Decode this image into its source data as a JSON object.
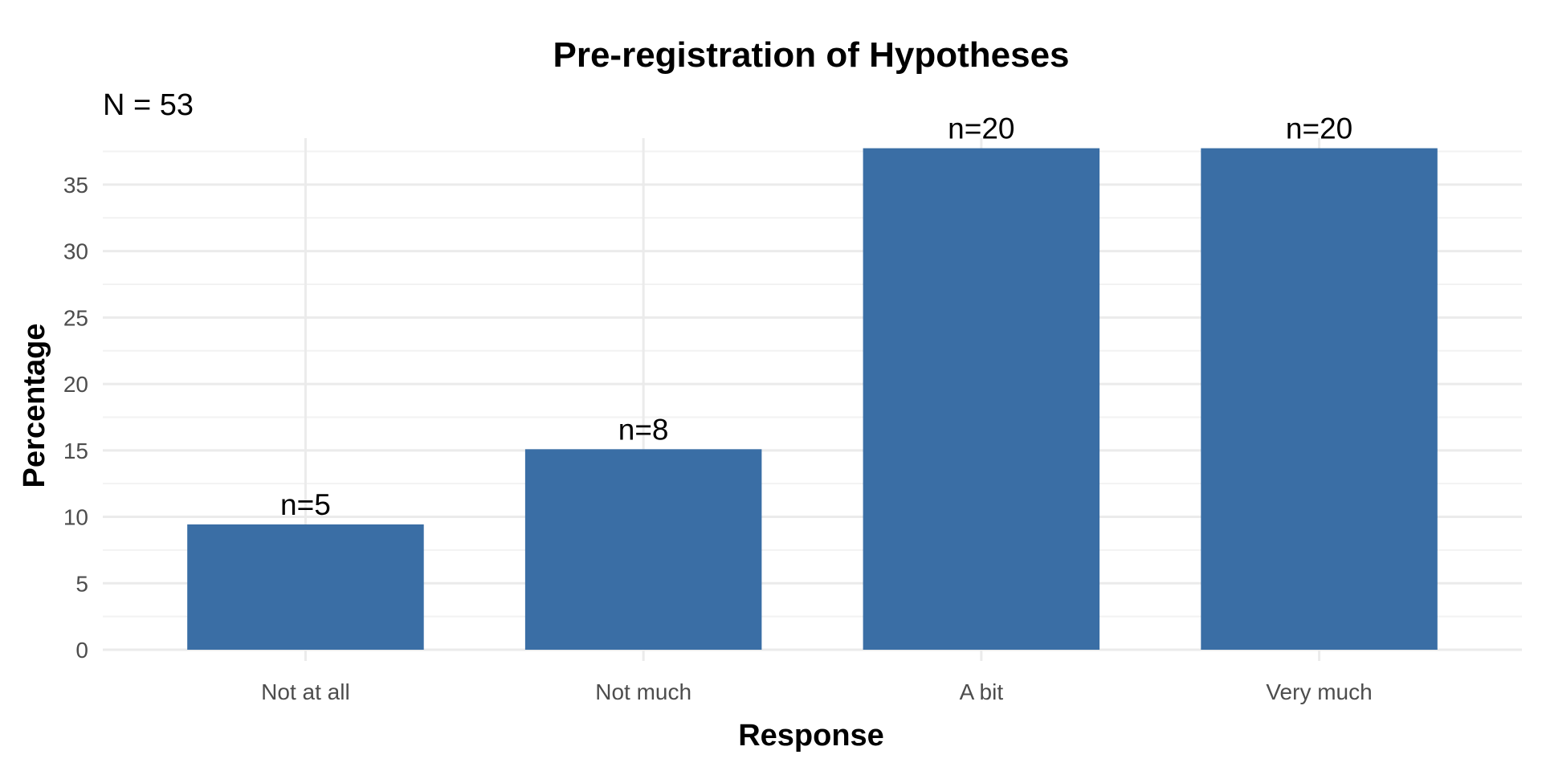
{
  "chart_data": {
    "type": "bar",
    "title": "Pre-registration of Hypotheses",
    "subtitle": "N = 53",
    "xlabel": "Response",
    "ylabel": "Percentage",
    "categories": [
      "Not at all",
      "Not much",
      "A bit",
      "Very much"
    ],
    "values": [
      9.43,
      15.09,
      37.74,
      37.74
    ],
    "data_labels": [
      "n=5",
      "n=8",
      "n=20",
      "n=20"
    ],
    "ylim": [
      0,
      38.5
    ],
    "yticks": [
      0,
      5,
      10,
      15,
      20,
      25,
      30,
      35
    ],
    "grid": true,
    "legend": "none",
    "colors": {
      "bar": "#3a6ea5",
      "grid_major": "#ebebeb",
      "grid_minor": "#f2f2f2",
      "text": "#000000",
      "tick_text": "#4d4d4d"
    }
  }
}
